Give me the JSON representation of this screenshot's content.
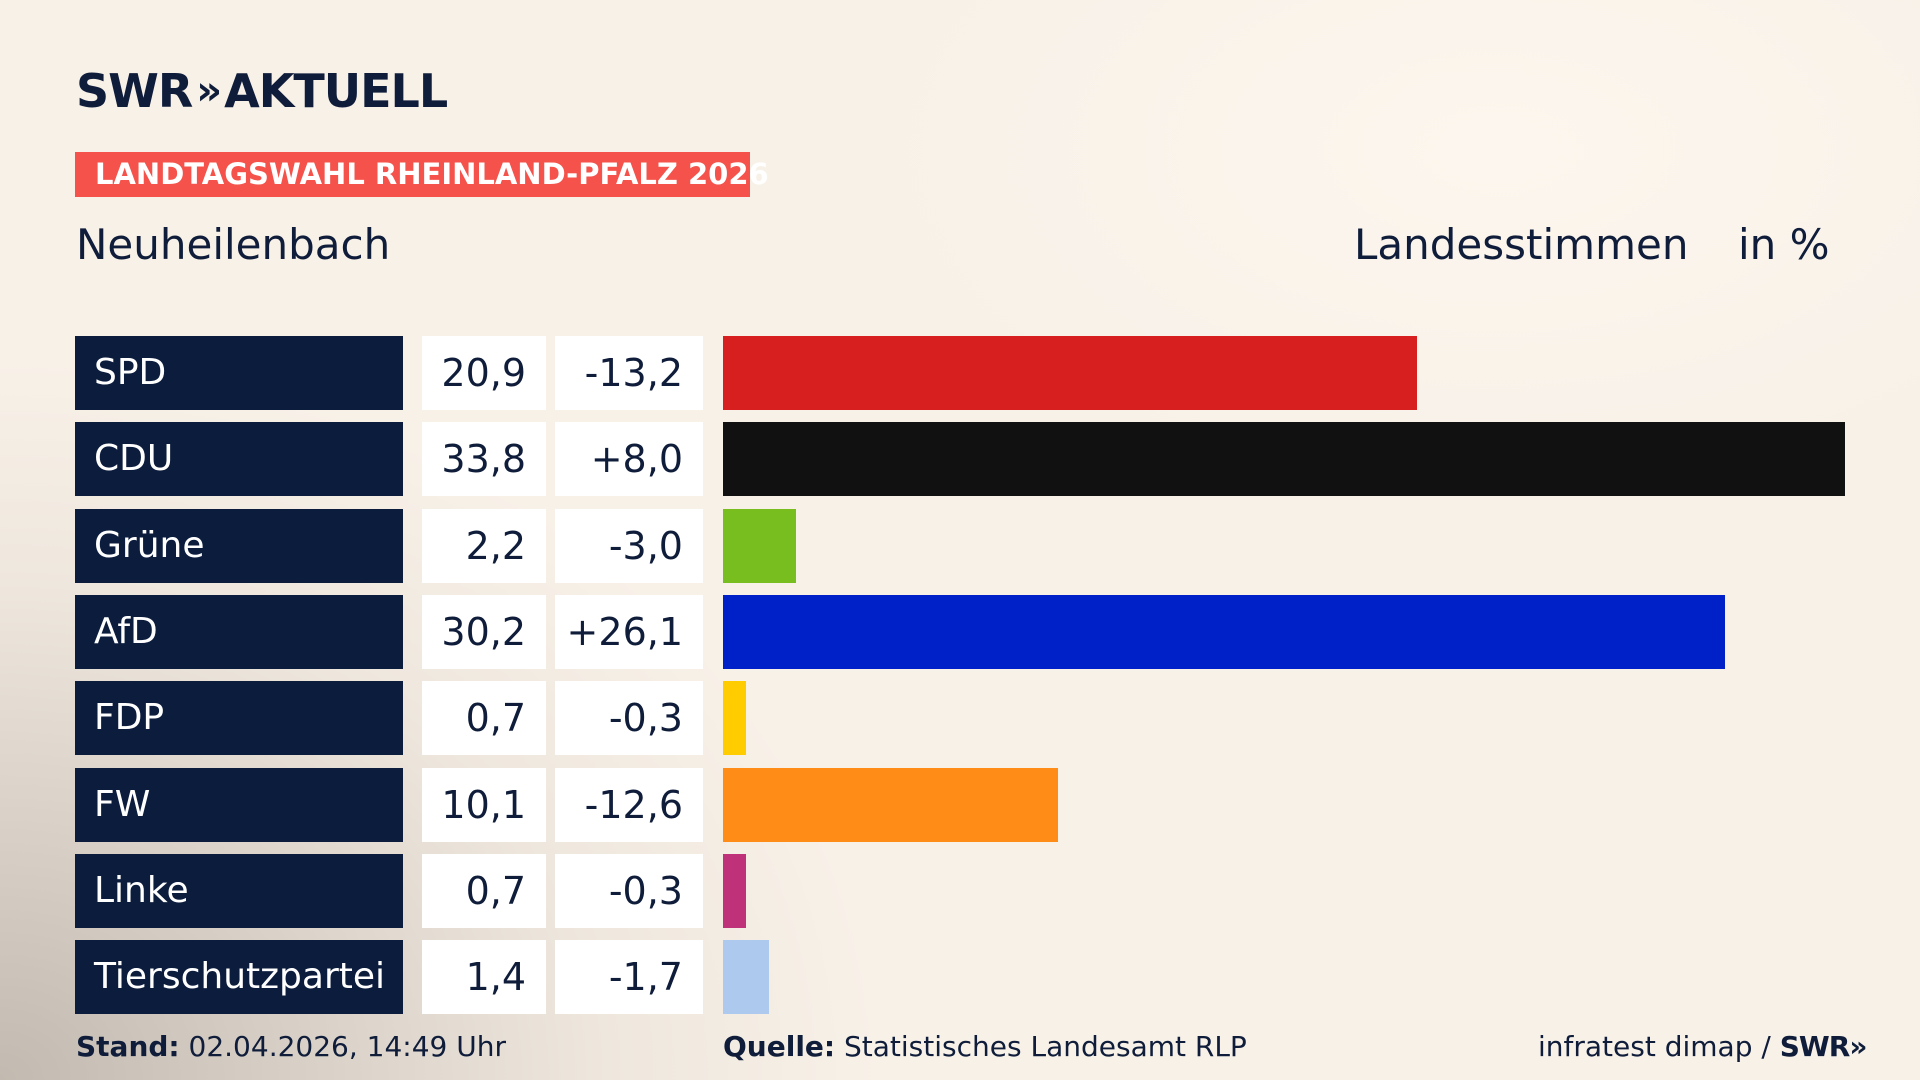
{
  "header": {
    "logo_text": "SWR",
    "logo_chevrons": "»",
    "logo_suffix": "AKTUELL",
    "banner": "LANDTAGSWAHL RHEINLAND-PFALZ 2026",
    "place": "Neuheilenbach",
    "vote_type": "Landesstimmen",
    "unit": "in %"
  },
  "colors": {
    "background": "#f8f1e8",
    "banner": "#f4524a",
    "party_box": "#0c1c3d",
    "text": "#0f1d3a"
  },
  "chart_data": {
    "type": "bar",
    "orientation": "horizontal",
    "categories": [
      "SPD",
      "CDU",
      "Grüne",
      "AfD",
      "FDP",
      "FW",
      "Linke",
      "Tierschutzpartei"
    ],
    "values": [
      20.9,
      33.8,
      2.2,
      30.2,
      0.7,
      10.1,
      0.7,
      1.4
    ],
    "value_labels": [
      "20,9",
      "33,8",
      "2,2",
      "30,2",
      "0,7",
      "10,1",
      "0,7",
      "1,4"
    ],
    "diff_labels": [
      "-13,2",
      "+8,0",
      "-3,0",
      "+26,1",
      "-0,3",
      "-12,6",
      "-0,3",
      "-1,7"
    ],
    "bar_colors": [
      "#d71f1f",
      "#111111",
      "#78be1e",
      "#0021c8",
      "#ffcc00",
      "#ff8c16",
      "#bf3279",
      "#aec9ee"
    ],
    "xlim": [
      0,
      33.8
    ],
    "grid": false,
    "legend": "none"
  },
  "footer": {
    "stand_label": "Stand:",
    "stand_value": "02.04.2026, 14:49 Uhr",
    "source_label": "Quelle:",
    "source_value": "Statistisches Landesamt RLP",
    "credit": "infratest dimap /",
    "credit_brand": "SWR»"
  }
}
